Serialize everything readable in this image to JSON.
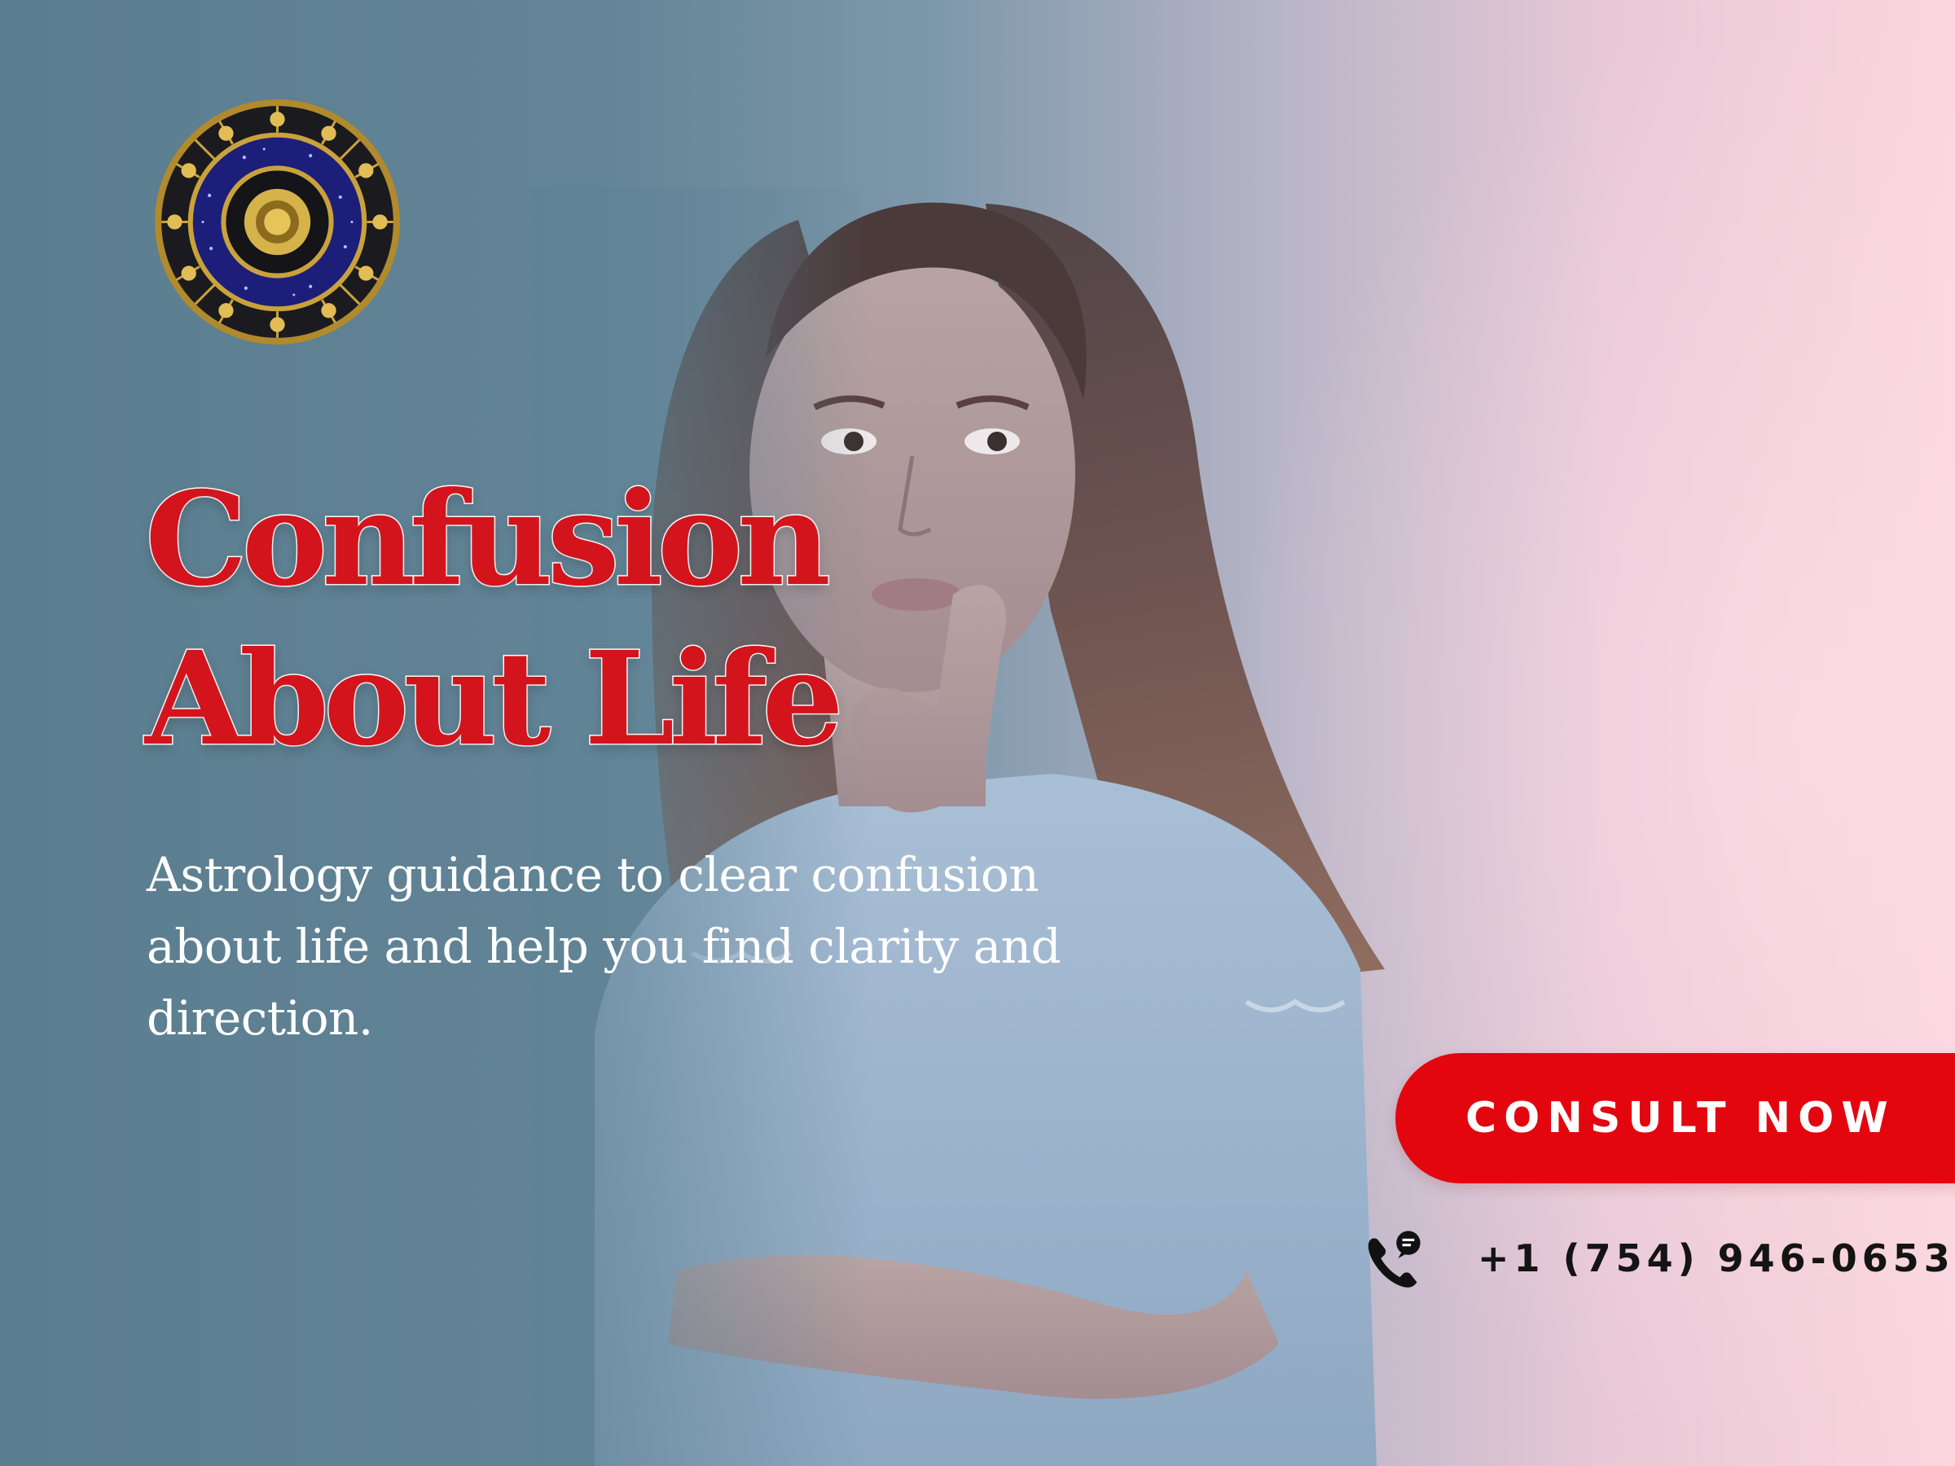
{
  "headline": {
    "line1": "Confusion",
    "line2": "About Life"
  },
  "description": "Astrology guidance to clear confusion about life and help you find clarity and direction.",
  "cta": {
    "label": "CONSULT NOW"
  },
  "contact": {
    "phone": "+1 (754) 946-0653",
    "icon": "phone-chat-icon"
  },
  "logo": {
    "icon": "zodiac-wheel-icon"
  },
  "colors": {
    "accent": "#e3060f",
    "headline": "#d3141c",
    "bg_left": "#5a7d8f",
    "bg_right": "#fbd6df"
  }
}
